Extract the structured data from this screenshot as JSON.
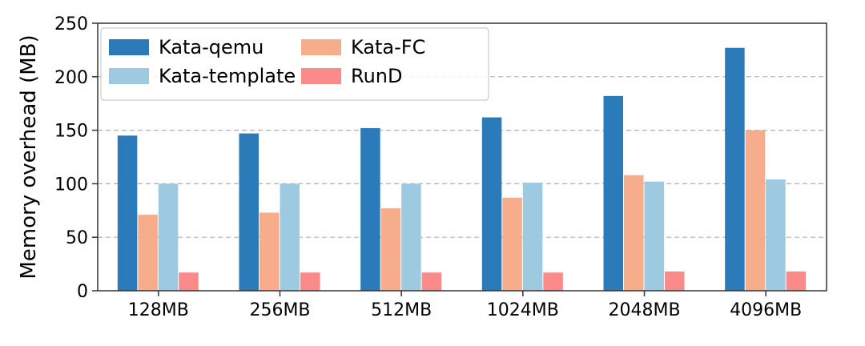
{
  "chart_data": {
    "type": "bar",
    "title": "",
    "xlabel": "",
    "ylabel": "Memory overhead (MB)",
    "ylim": [
      0,
      250
    ],
    "yticks": [
      0,
      50,
      100,
      150,
      200,
      250
    ],
    "grid": "y-dashed",
    "legend_placement": "top-left",
    "legend_columns": 2,
    "categories": [
      "128MB",
      "256MB",
      "512MB",
      "1024MB",
      "2048MB",
      "4096MB"
    ],
    "series": [
      {
        "name": "Kata-qemu",
        "color": "#2b7bba",
        "values": [
          145,
          147,
          152,
          162,
          182,
          227
        ]
      },
      {
        "name": "Kata-FC",
        "color": "#f7ad8c",
        "values": [
          71,
          73,
          77,
          87,
          108,
          150
        ]
      },
      {
        "name": "Kata-template",
        "color": "#9ecae1",
        "values": [
          100,
          100,
          100,
          101,
          102,
          104
        ]
      },
      {
        "name": "RunD",
        "color": "#fb8a8a",
        "values": [
          17,
          17,
          17,
          17,
          18,
          18
        ]
      }
    ],
    "legend_order": [
      "Kata-qemu",
      "Kata-template",
      "Kata-FC",
      "RunD"
    ]
  }
}
